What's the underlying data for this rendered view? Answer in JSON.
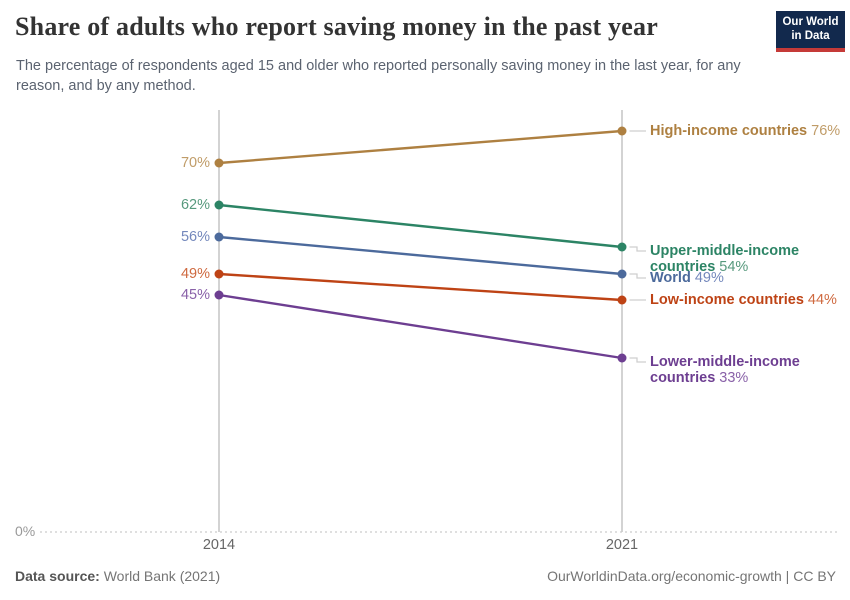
{
  "header": {
    "title": "Share of adults who report saving money in the past year",
    "subtitle": "The percentage of respondents aged 15 and older who reported personally saving money in the last year, for any reason, and by any method.",
    "logo": {
      "line1": "Our World",
      "line2": "in Data",
      "bg_color": "#12294D",
      "accent_color": "#C53A38"
    }
  },
  "chart_data": {
    "type": "line",
    "variant": "slope",
    "title": "Share of adults who report saving money in the past year",
    "x": [
      "2014",
      "2021"
    ],
    "ylim": [
      0,
      80
    ],
    "grid": "baseline-dotted-only",
    "legend_position": "right-inline-labels",
    "y_axis_baseline_label": "0%",
    "series": [
      {
        "name": "High-income countries",
        "values": [
          70,
          76
        ],
        "start_label": "70%",
        "end_label": "76%",
        "color": "#AE8041",
        "value_color": "#C09C68",
        "two_line": false,
        "elbow_dy": 0
      },
      {
        "name": "Upper-middle-income countries",
        "values": [
          62,
          54
        ],
        "start_label": "62%",
        "end_label": "54%",
        "color": "#2C8465",
        "value_color": "#57997D",
        "two_line": true,
        "elbow_dy": 4
      },
      {
        "name": "World",
        "values": [
          56,
          49
        ],
        "start_label": "56%",
        "end_label": "49%",
        "color": "#4C6A9C",
        "value_color": "#7488BC",
        "two_line": false,
        "elbow_dy": 4
      },
      {
        "name": "Low-income countries",
        "values": [
          49,
          44
        ],
        "start_label": "49%",
        "end_label": "44%",
        "color": "#BE4315",
        "value_color": "#CF6A40",
        "two_line": false,
        "elbow_dy": 0
      },
      {
        "name": "Lower-middle-income countries",
        "values": [
          45,
          33
        ],
        "start_label": "45%",
        "end_label": "33%",
        "color": "#6D3E91",
        "value_color": "#8961A8",
        "two_line": true,
        "elbow_dy": 4
      }
    ]
  },
  "footer": {
    "source_label": "Data source:",
    "source_value": "World Bank (2021)",
    "right_text": "OurWorldinData.org/economic-growth | CC BY"
  }
}
